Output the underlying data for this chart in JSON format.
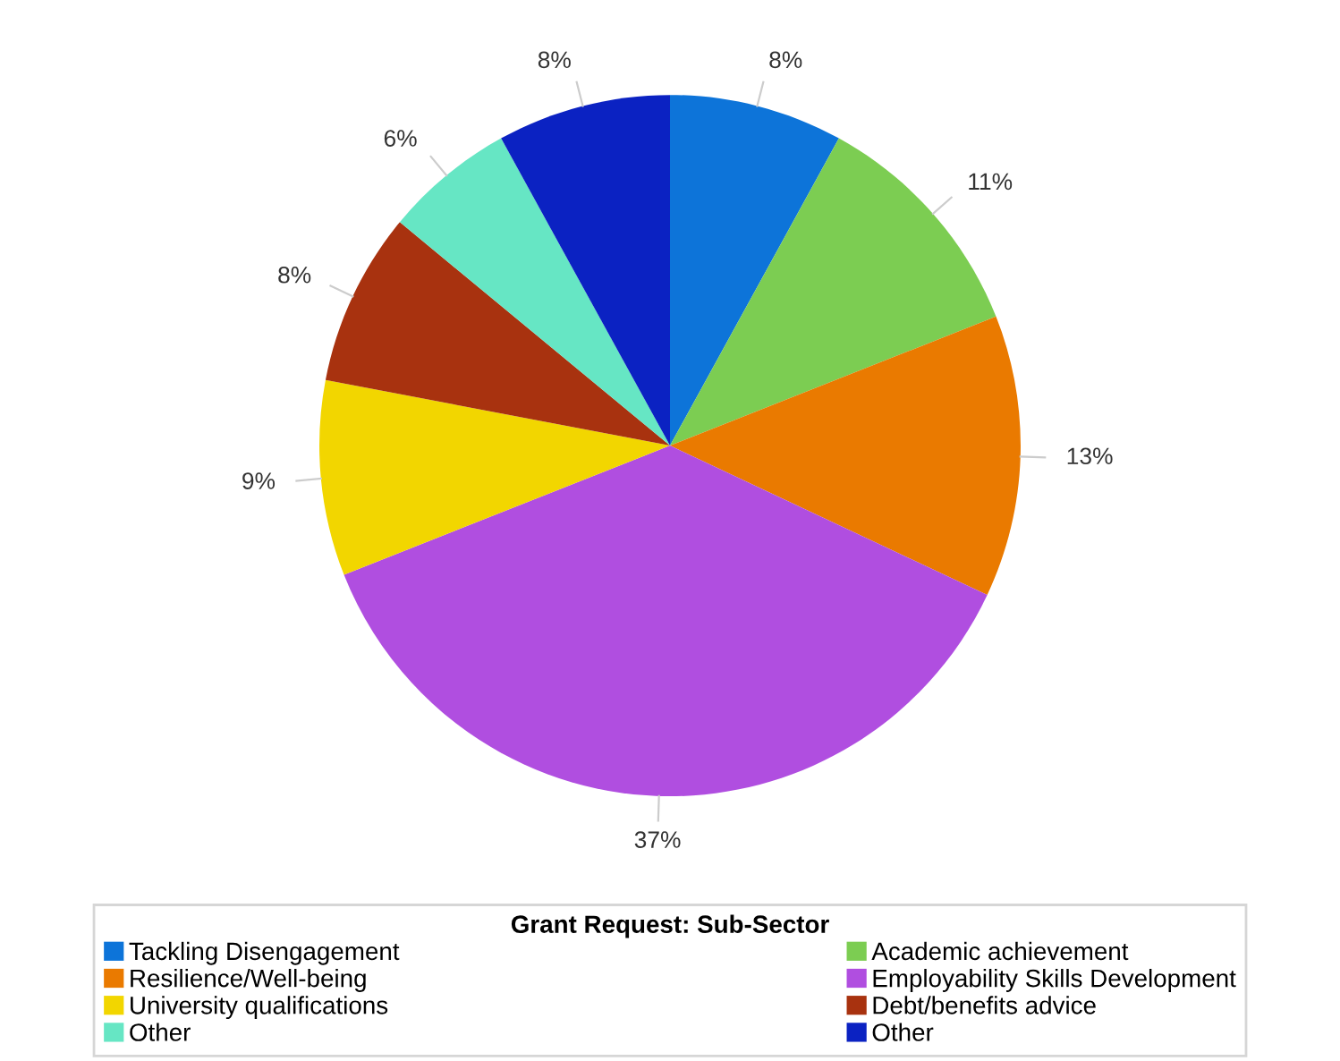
{
  "chart_data": {
    "type": "pie",
    "legend_title": "Grant Request: Sub-Sector",
    "legend": "bottom",
    "categories": [
      "Tackling Disengagement",
      "Academic achievement",
      "Resilience/Well-being",
      "Employability Skills Development",
      "University qualifications",
      "Debt/benefits advice",
      "Other",
      "Other"
    ],
    "values": [
      8,
      11,
      13,
      37,
      9,
      8,
      6,
      8
    ],
    "colors": [
      "#0d74d9",
      "#7ccd52",
      "#ea7a00",
      "#b04ee0",
      "#f2d600",
      "#a8320f",
      "#66e6c4",
      "#0b22c2"
    ],
    "value_labels": [
      "8%",
      "11%",
      "13%",
      "37%",
      "9%",
      "8%",
      "6%",
      "8%"
    ]
  }
}
